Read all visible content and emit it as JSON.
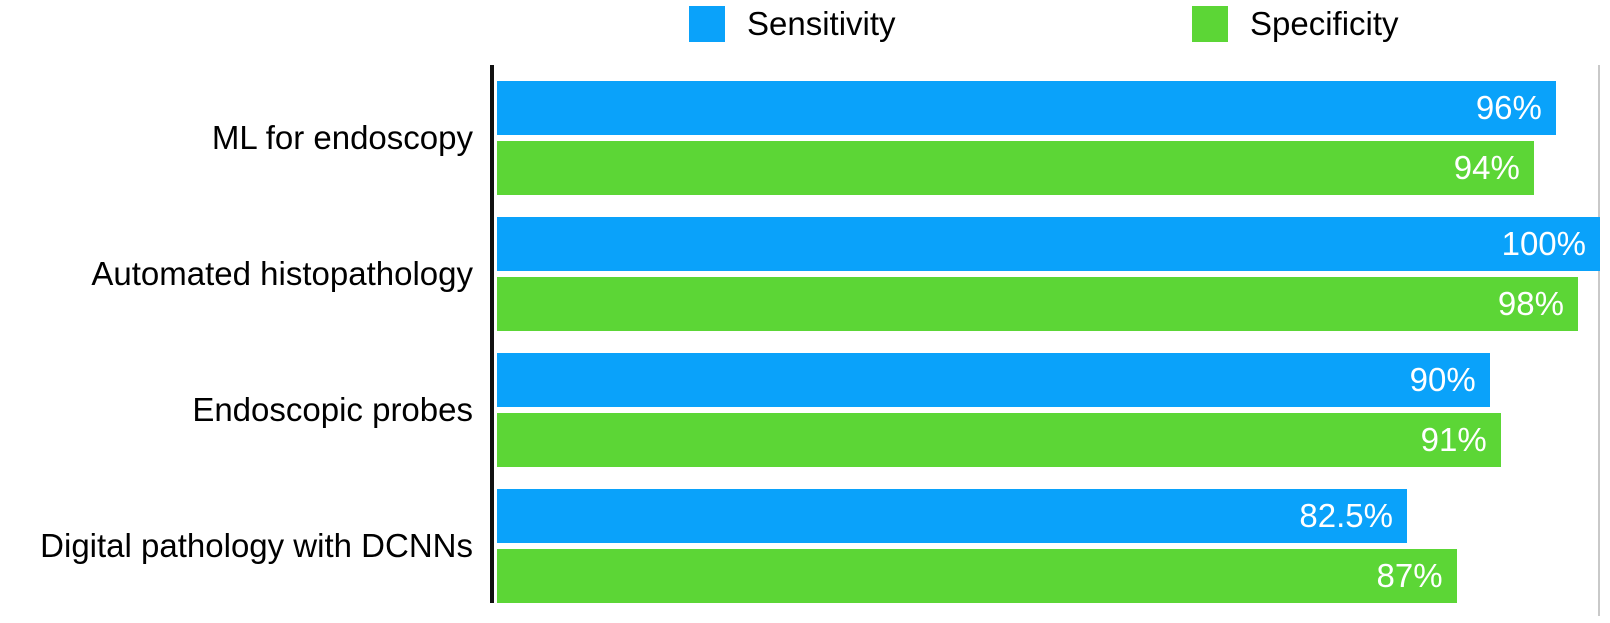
{
  "legend": {
    "items": [
      {
        "label": "Sensitivity",
        "color": "#0AA2FA"
      },
      {
        "label": "Specificity",
        "color": "#5CD636"
      }
    ]
  },
  "chart_data": {
    "type": "bar",
    "orientation": "horizontal",
    "title": "",
    "xlabel": "",
    "ylabel": "",
    "xlim": [
      0,
      100
    ],
    "grid": false,
    "legend_position": "top",
    "value_suffix": "%",
    "categories": [
      "ML for endoscopy",
      "Automated histopathology",
      "Endoscopic probes",
      "Digital pathology with DCNNs"
    ],
    "series": [
      {
        "name": "Sensitivity",
        "color": "#0AA2FA",
        "values": [
          96,
          100,
          90,
          82.5
        ]
      },
      {
        "name": "Specificity",
        "color": "#5CD636",
        "values": [
          94,
          98,
          91,
          87
        ]
      }
    ],
    "value_labels": {
      "Sensitivity": [
        "96%",
        "100%",
        "90%",
        "82.5%"
      ],
      "Specificity": [
        "94%",
        "98%",
        "91%",
        "87%"
      ]
    }
  },
  "colors": {
    "axis_line": "#111111",
    "right_boundary_line": "#C9C9C9",
    "value_text": "#FFFFFF",
    "category_text": "#000000",
    "background": "#FFFFFF"
  }
}
